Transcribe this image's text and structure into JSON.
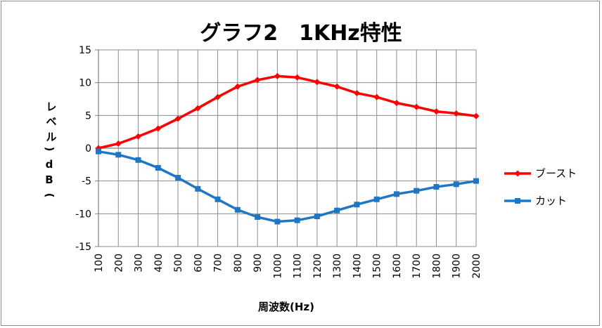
{
  "chart_data": {
    "type": "line",
    "title": "グラフ2　1KHz特性",
    "xlabel": "周波数(Hz)",
    "ylabel": "レベル(dB)",
    "ylabel_chars": [
      "レ",
      "ベ",
      "ル",
      "(",
      "d",
      "B",
      ")"
    ],
    "categories": [
      "100",
      "200",
      "300",
      "400",
      "500",
      "600",
      "700",
      "800",
      "900",
      "1000",
      "1100",
      "1200",
      "1300",
      "1400",
      "1500",
      "1600",
      "1700",
      "1800",
      "1900",
      "2000"
    ],
    "ylim": [
      -15,
      15
    ],
    "yticks": [
      "15",
      "10",
      "5",
      "0",
      "-5",
      "-10",
      "-15"
    ],
    "grid": true,
    "legend_position": "right",
    "series": [
      {
        "name": "ブースト",
        "color": "#ff0000",
        "marker": "diamond",
        "values": [
          0.0,
          0.7,
          1.8,
          3.0,
          4.5,
          6.1,
          7.8,
          9.4,
          10.4,
          11.0,
          10.8,
          10.1,
          9.4,
          8.4,
          7.8,
          6.9,
          6.3,
          5.6,
          5.3,
          4.9
        ]
      },
      {
        "name": "カット",
        "color": "#1f77c4",
        "marker": "square",
        "values": [
          -0.5,
          -1.0,
          -1.8,
          -3.0,
          -4.5,
          -6.2,
          -7.8,
          -9.4,
          -10.5,
          -11.2,
          -11.0,
          -10.4,
          -9.5,
          -8.6,
          -7.8,
          -7.0,
          -6.5,
          -5.9,
          -5.5,
          -5.0
        ]
      }
    ]
  }
}
